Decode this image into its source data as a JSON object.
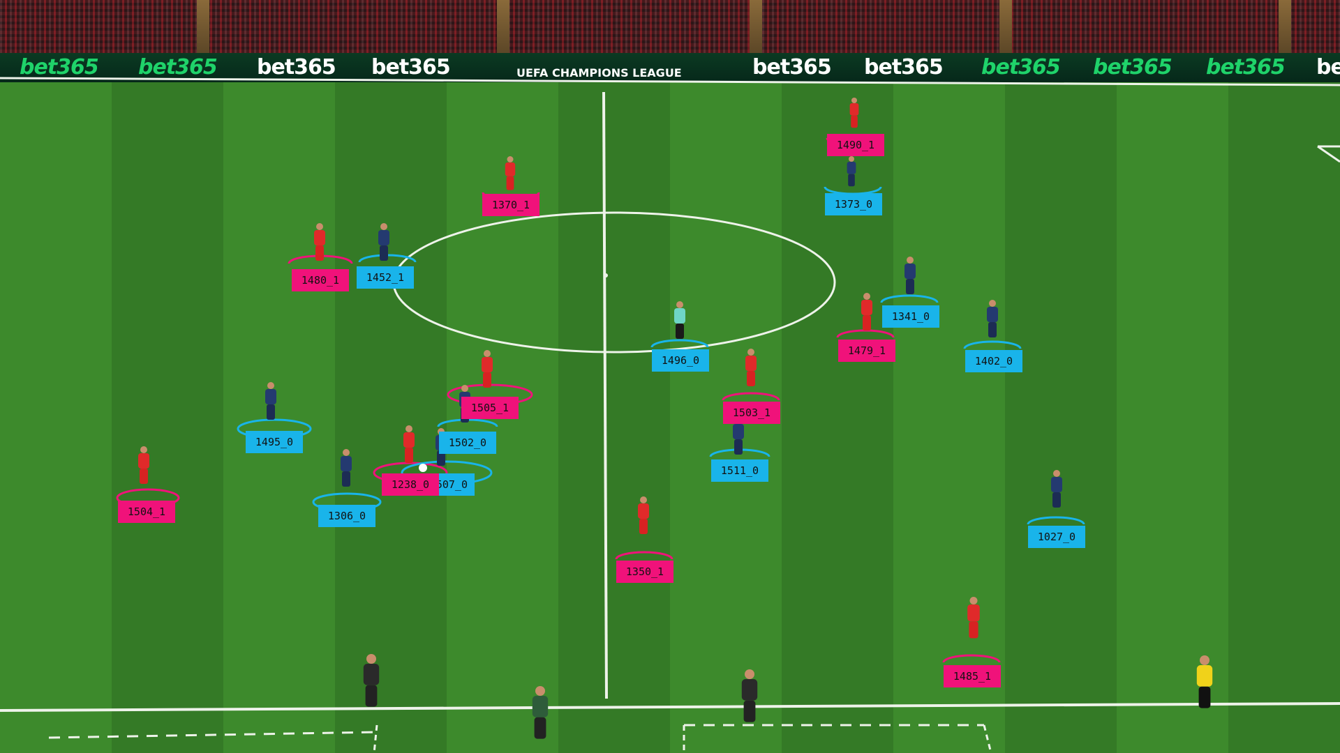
{
  "stadium": {
    "boards": [
      "bet365",
      "bet365",
      "bet365",
      "bet365",
      "bet365",
      "bet365",
      "bet365",
      "bet365",
      "bet365",
      "bet365",
      "bet365"
    ],
    "competition_board": "UEFA CHAMPIONS LEAGUE"
  },
  "colors": {
    "team_red_label": "#f0127a",
    "team_blue_label": "#19b4ea",
    "pitch_light": "#3d8a2c",
    "pitch_dark": "#347a26"
  },
  "detections": [
    {
      "id": "1490_1",
      "team": "red"
    },
    {
      "id": "1370_1",
      "team": "red"
    },
    {
      "id": "1373_0",
      "team": "blue"
    },
    {
      "id": "1480_1",
      "team": "red"
    },
    {
      "id": "1452_1",
      "team": "blue"
    },
    {
      "id": "1341_0",
      "team": "blue"
    },
    {
      "id": "1479_1",
      "team": "red"
    },
    {
      "id": "1402_0",
      "team": "blue"
    },
    {
      "id": "1496_0",
      "team": "blue"
    },
    {
      "id": "1505_1",
      "team": "red"
    },
    {
      "id": "1503_1",
      "team": "red"
    },
    {
      "id": "1495_0",
      "team": "blue"
    },
    {
      "id": "1502_0",
      "team": "blue"
    },
    {
      "id": "1511_0",
      "team": "blue"
    },
    {
      "id": "1238_0",
      "team": "red"
    },
    {
      "id": "507_0",
      "team": "blue"
    },
    {
      "id": "1504_1",
      "team": "red"
    },
    {
      "id": "1306_0",
      "team": "blue"
    },
    {
      "id": "1027_0",
      "team": "blue"
    },
    {
      "id": "1350_1",
      "team": "red"
    },
    {
      "id": "1485_1",
      "team": "red"
    }
  ]
}
